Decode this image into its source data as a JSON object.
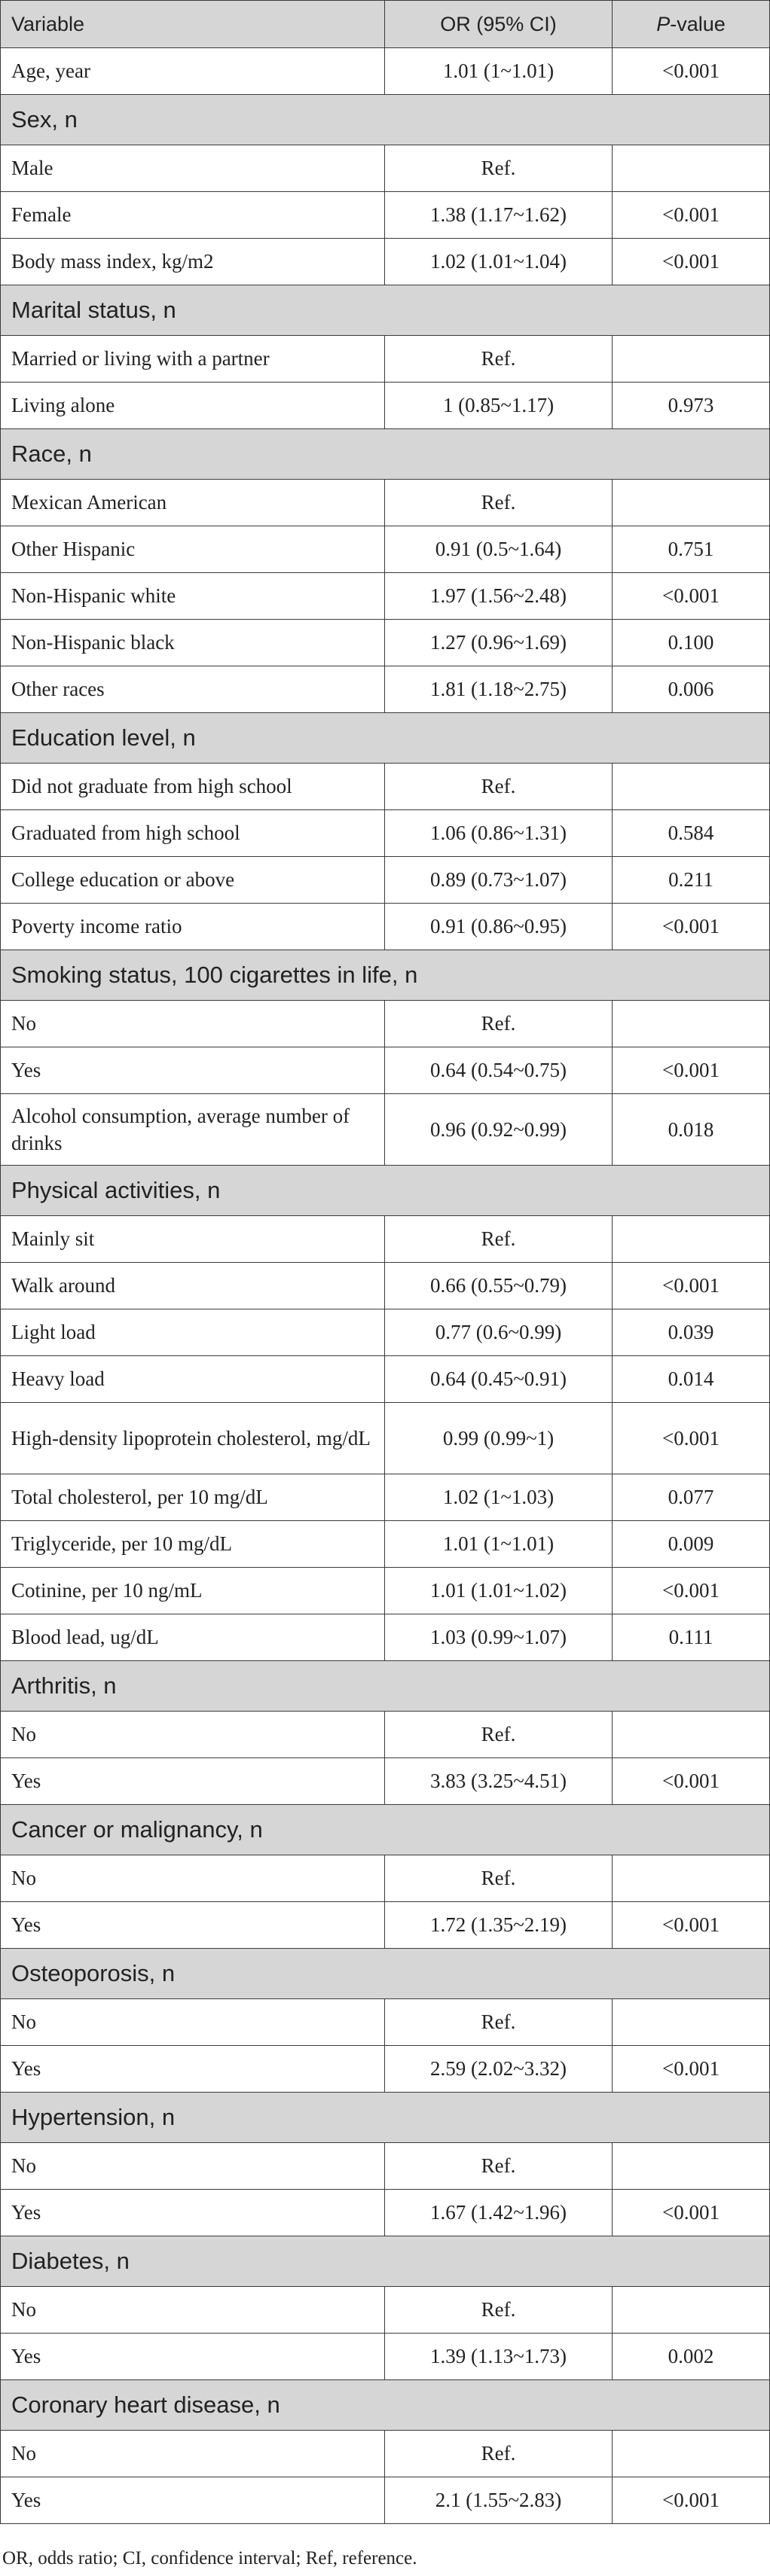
{
  "header": {
    "variable": "Variable",
    "or_ci": "OR (95% CI)",
    "p_italic": "P",
    "p_rest": "-value"
  },
  "rows": [
    {
      "type": "data",
      "variable": "Age, year",
      "or": "1.01 (1~1.01)",
      "p": "<0.001"
    },
    {
      "type": "section",
      "variable": "Sex, n"
    },
    {
      "type": "data",
      "variable": "Male",
      "or": "Ref.",
      "p": ""
    },
    {
      "type": "data",
      "variable": "Female",
      "or": "1.38 (1.17~1.62)",
      "p": "<0.001"
    },
    {
      "type": "data",
      "variable": "Body mass index, kg/m2",
      "or": "1.02 (1.01~1.04)",
      "p": "<0.001"
    },
    {
      "type": "section",
      "variable": "Marital status, n"
    },
    {
      "type": "data",
      "variable": "Married or living with a partner",
      "or": "Ref.",
      "p": ""
    },
    {
      "type": "data",
      "variable": "Living alone",
      "or": "1 (0.85~1.17)",
      "p": "0.973"
    },
    {
      "type": "section",
      "variable": "Race, n"
    },
    {
      "type": "data",
      "variable": "Mexican American",
      "or": "Ref.",
      "p": ""
    },
    {
      "type": "data",
      "variable": "Other Hispanic",
      "or": "0.91 (0.5~1.64)",
      "p": "0.751"
    },
    {
      "type": "data",
      "variable": "Non-Hispanic white",
      "or": "1.97 (1.56~2.48)",
      "p": "<0.001"
    },
    {
      "type": "data",
      "variable": "Non-Hispanic black",
      "or": "1.27 (0.96~1.69)",
      "p": "0.100"
    },
    {
      "type": "data",
      "variable": "Other races",
      "or": "1.81 (1.18~2.75)",
      "p": "0.006"
    },
    {
      "type": "section",
      "variable": "Education level, n"
    },
    {
      "type": "data",
      "variable": "Did not graduate from high school",
      "or": "Ref.",
      "p": ""
    },
    {
      "type": "data",
      "variable": "Graduated from high school",
      "or": "1.06 (0.86~1.31)",
      "p": "0.584"
    },
    {
      "type": "data",
      "variable": "College education or above",
      "or": "0.89 (0.73~1.07)",
      "p": "0.211"
    },
    {
      "type": "data",
      "variable": "Poverty income ratio",
      "or": "0.91 (0.86~0.95)",
      "p": "<0.001"
    },
    {
      "type": "section",
      "variable": "Smoking status, 100 cigarettes in life, n"
    },
    {
      "type": "data",
      "variable": "No",
      "or": "Ref.",
      "p": ""
    },
    {
      "type": "data",
      "variable": "Yes",
      "or": "0.64 (0.54~0.75)",
      "p": "<0.001"
    },
    {
      "type": "data",
      "tall": true,
      "variable": "Alcohol consumption, average number of drinks",
      "or": "0.96 (0.92~0.99)",
      "p": "0.018"
    },
    {
      "type": "section",
      "variable": "Physical activities, n"
    },
    {
      "type": "data",
      "variable": "Mainly sit",
      "or": "Ref.",
      "p": ""
    },
    {
      "type": "data",
      "variable": "Walk around",
      "or": "0.66 (0.55~0.79)",
      "p": "<0.001"
    },
    {
      "type": "data",
      "variable": "Light load",
      "or": "0.77 (0.6~0.99)",
      "p": "0.039"
    },
    {
      "type": "data",
      "variable": "Heavy load",
      "or": "0.64 (0.45~0.91)",
      "p": "0.014"
    },
    {
      "type": "data",
      "tall": true,
      "variable": "High-density lipoprotein cholesterol, mg/dL",
      "or": "0.99 (0.99~1)",
      "p": "<0.001"
    },
    {
      "type": "data",
      "variable": "Total cholesterol, per 10 mg/dL",
      "or": "1.02 (1~1.03)",
      "p": "0.077"
    },
    {
      "type": "data",
      "variable": "Triglyceride, per 10 mg/dL",
      "or": "1.01 (1~1.01)",
      "p": "0.009"
    },
    {
      "type": "data",
      "variable": "Cotinine, per 10 ng/mL",
      "or": "1.01 (1.01~1.02)",
      "p": "<0.001"
    },
    {
      "type": "data",
      "variable": "Blood lead, ug/dL",
      "or": "1.03 (0.99~1.07)",
      "p": "0.111"
    },
    {
      "type": "section",
      "variable": "Arthritis, n"
    },
    {
      "type": "data",
      "variable": "No",
      "or": "Ref.",
      "p": ""
    },
    {
      "type": "data",
      "variable": "Yes",
      "or": "3.83 (3.25~4.51)",
      "p": "<0.001"
    },
    {
      "type": "section",
      "variable": "Cancer or malignancy, n"
    },
    {
      "type": "data",
      "variable": "No",
      "or": "Ref.",
      "p": ""
    },
    {
      "type": "data",
      "variable": "Yes",
      "or": "1.72 (1.35~2.19)",
      "p": "<0.001"
    },
    {
      "type": "section",
      "variable": "Osteoporosis, n"
    },
    {
      "type": "data",
      "variable": "No",
      "or": "Ref.",
      "p": ""
    },
    {
      "type": "data",
      "variable": "Yes",
      "or": "2.59 (2.02~3.32)",
      "p": "<0.001"
    },
    {
      "type": "section",
      "variable": "Hypertension, n"
    },
    {
      "type": "data",
      "variable": "No",
      "or": "Ref.",
      "p": ""
    },
    {
      "type": "data",
      "variable": "Yes",
      "or": "1.67 (1.42~1.96)",
      "p": "<0.001"
    },
    {
      "type": "section",
      "variable": "Diabetes, n"
    },
    {
      "type": "data",
      "variable": "No",
      "or": "Ref.",
      "p": ""
    },
    {
      "type": "data",
      "variable": "Yes",
      "or": "1.39 (1.13~1.73)",
      "p": "0.002"
    },
    {
      "type": "section",
      "variable": "Coronary heart disease, n"
    },
    {
      "type": "data",
      "variable": "No",
      "or": "Ref.",
      "p": ""
    },
    {
      "type": "data",
      "variable": "Yes",
      "or": "2.1 (1.55~2.83)",
      "p": "<0.001"
    }
  ],
  "footnote": "OR, odds ratio; CI, confidence interval; Ref, reference."
}
